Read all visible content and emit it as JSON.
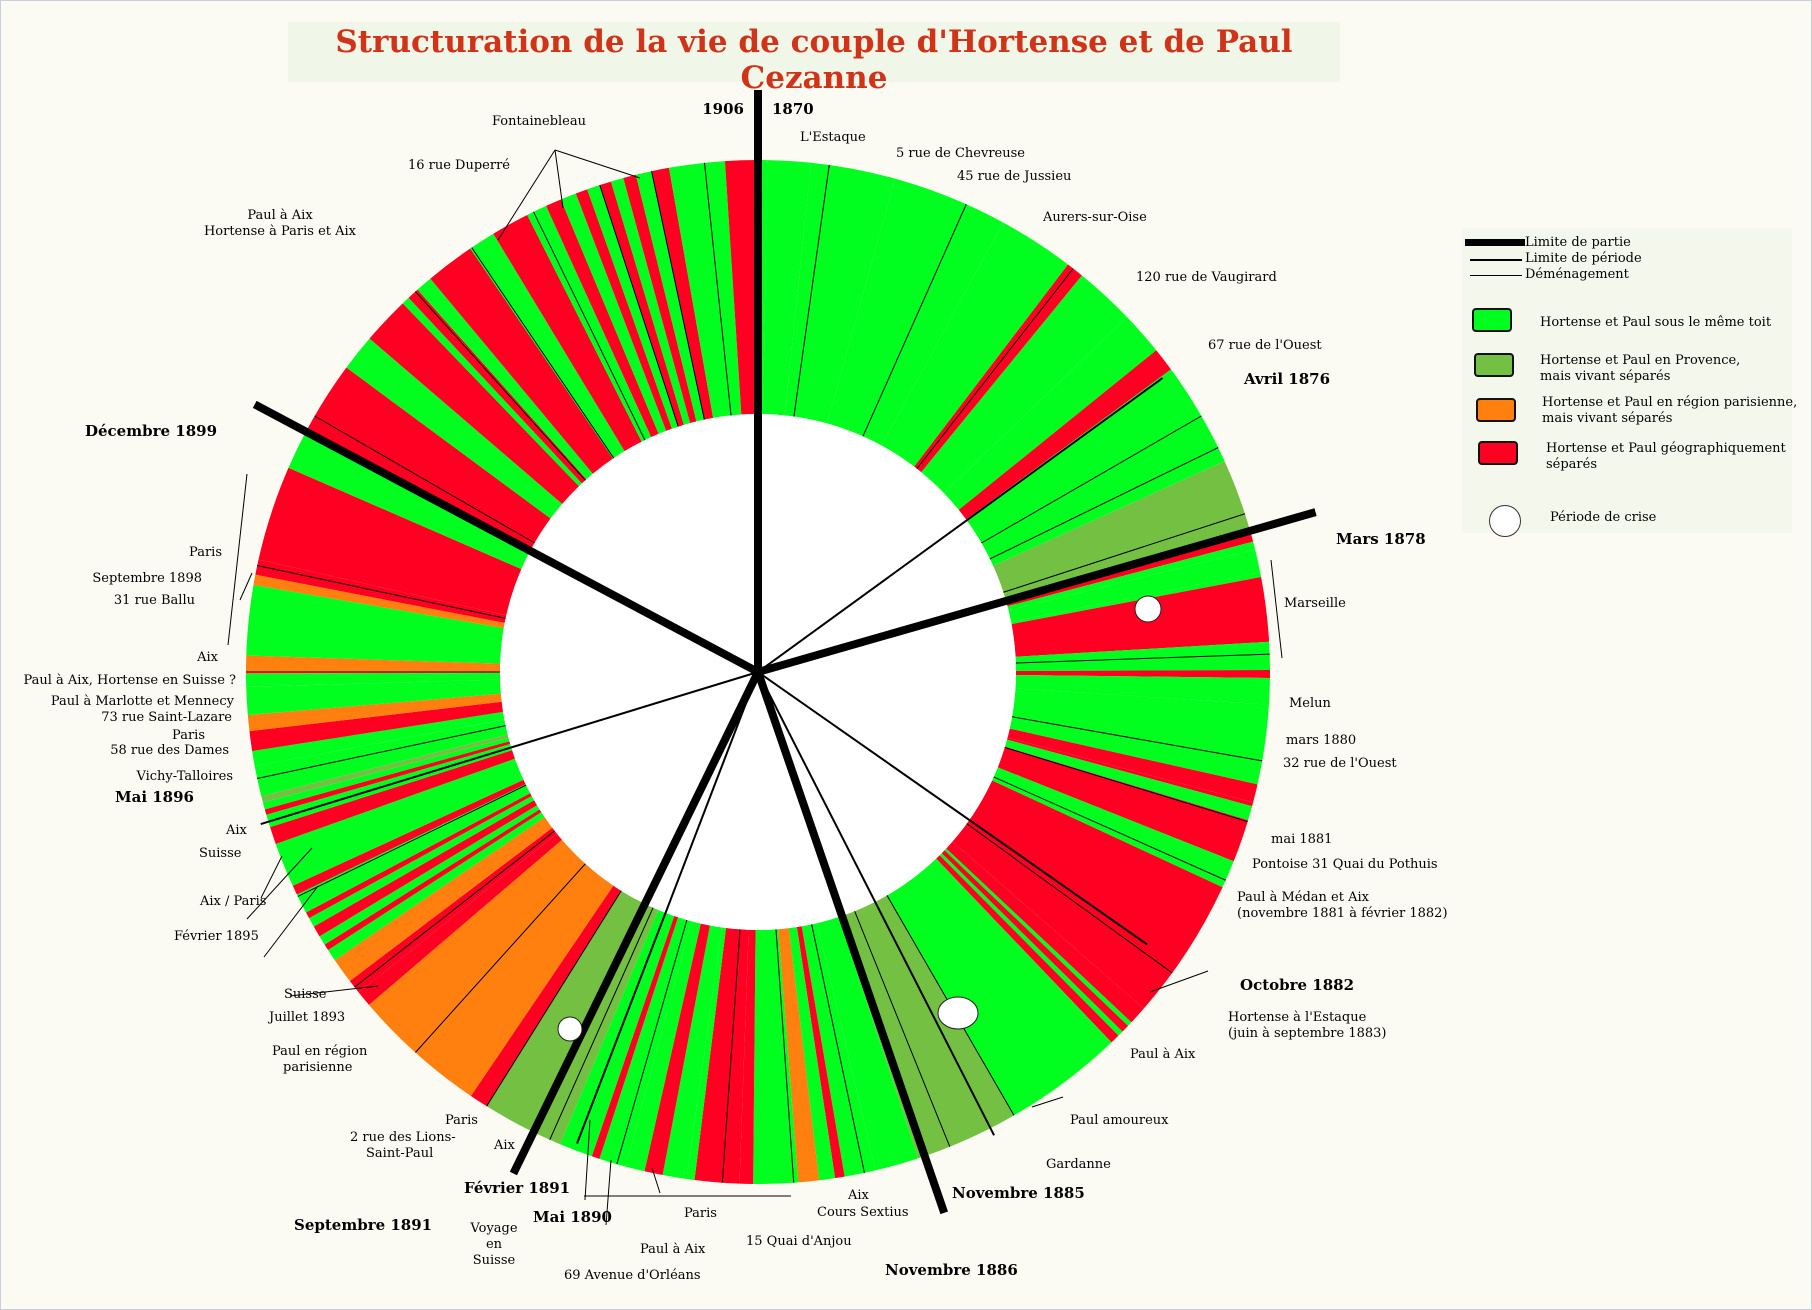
{
  "title": "Structuration de la vie de couple d'Hortense et de Paul Cezanne",
  "colors": {
    "together": "#00ff1e",
    "provence": "#74c043",
    "paris_region": "#ff7f0f",
    "separated": "#ff0022"
  },
  "legend": {
    "part_limit": "Limite de partie",
    "period_limit": "Limite de période",
    "move": "Déménagement",
    "together": "Hortense et Paul sous le même toit",
    "provence_1": "Hortense et Paul en Provence,",
    "provence_2": "mais vivant séparés",
    "paris_1": "Hortense et Paul en région parisienne,",
    "paris_2": "mais vivant séparés",
    "separated_1": "Hortense et Paul géographiquement",
    "separated_2": "séparés",
    "crisis": "Période de crise"
  },
  "boundary_labels": {
    "start": "1870",
    "end": "1906",
    "avril_1876": "Avril 1876",
    "mars_1878": "Mars 1878",
    "octobre_1882": "Octobre 1882",
    "novembre_1885": "Novembre 1885",
    "novembre_1886": "Novembre 1886",
    "mai_1890": "Mai 1890",
    "fevrier_1891": "Février 1891",
    "septembre_1891": "Septembre 1891",
    "mai_1896": "Mai 1896",
    "decembre_1899": "Décembre 1899"
  },
  "places": [
    "L'Estaque",
    "5 rue de Chevreuse",
    "45 rue de Jussieu",
    "Aurers-sur-Oise",
    "120 rue de Vaugirard",
    "67 rue de l'Ouest",
    "Marseille",
    "Melun",
    "mars 1880",
    "32 rue de l'Ouest",
    "mai 1881",
    "Pontoise  31 Quai du Pothuis",
    "Paul à Médan et Aix",
    "(novembre 1881 à février 1882)",
    "Hortense à l'Estaque",
    "(juin à septembre 1883)",
    "Paul à Aix",
    "Paul amoureux",
    "Gardanne",
    "Aix",
    "Cours Sextius",
    "15 Quai d'Anjou",
    "Paris",
    "Paul à Aix",
    "69 Avenue d'Orléans",
    "Voyage",
    "en",
    "Suisse",
    "Aix",
    "2 rue des Lions-",
    "Saint-Paul",
    "Paris",
    "Paul en région",
    "parisienne",
    "Juillet 1893",
    "Suisse",
    "Février 1895",
    "Aix / Paris",
    "Suisse",
    "Aix",
    "Vichy-Talloires",
    "58 rue des Dames",
    "Paris",
    "73 rue Saint-Lazare",
    "Paul à Marlotte et Mennecy",
    "Paul à Aix, Hortense en Suisse ?",
    "Aix",
    "31 rue Ballu",
    "Septembre 1898",
    "Paris",
    "Paul à Aix",
    "Hortense à Paris et Aix",
    "16 rue Duperré",
    "Fontainebleau"
  ],
  "segments": [
    [
      "separated",
      0.5
    ],
    [
      "together",
      0.7
    ],
    [
      "together",
      5.4
    ],
    [
      "together",
      10.6
    ],
    [
      "together",
      14.5
    ],
    [
      "together",
      9.6
    ],
    [
      "separated",
      2.2
    ],
    [
      "together",
      7.6
    ],
    [
      "together",
      5.5
    ],
    [
      "separated",
      3.0
    ],
    [
      "together",
      13.2
    ],
    [
      "provence",
      9.6
    ],
    [
      "separated",
      1.0
    ],
    [
      "together",
      1.0
    ],
    [
      "together",
      2.9
    ],
    [
      "together",
      0.6
    ],
    [
      "separated",
      8.1
    ],
    [
      "together",
      3.5
    ],
    [
      "separated",
      1.0
    ],
    [
      "together",
      3.3
    ],
    [
      "together",
      7.0
    ],
    [
      "together",
      3.0
    ],
    [
      "separated",
      2.3
    ],
    [
      "separated",
      0.5
    ],
    [
      "together",
      1.8
    ],
    [
      "separated",
      5.4
    ],
    [
      "together",
      3.5
    ],
    [
      "separated",
      18.0
    ],
    [
      "separated",
      2.3
    ],
    [
      "together",
      0.6
    ],
    [
      "separated",
      1.0
    ],
    [
      "together",
      0.7
    ],
    [
      "separated",
      1.2
    ],
    [
      "together",
      15.2
    ],
    [
      "provence",
      13.0
    ],
    [
      "together",
      5.5
    ],
    [
      "together",
      3.9
    ],
    [
      "separated",
      1.2
    ],
    [
      "together",
      2.0
    ],
    [
      "orange_pad",
      0
    ],
    [
      "paris_region",
      2.6
    ],
    [
      "together",
      5.6
    ],
    [
      "separated",
      1.7
    ],
    [
      "separated",
      5.6
    ],
    [
      "together",
      1.0
    ],
    [
      "together",
      3.0
    ],
    [
      "separated",
      2.3
    ],
    [
      "together",
      2.4
    ],
    [
      "together",
      3.4
    ],
    [
      "separated",
      1.0
    ],
    [
      "together",
      4.2
    ],
    [
      "provence",
      10.3
    ],
    [
      "separated",
      2.3
    ],
    [
      "paris_region",
      17.0
    ],
    [
      "separated",
      2.0
    ],
    [
      "separated",
      1.8
    ],
    [
      "paris_region",
      3.2
    ],
    [
      "together",
      1.5
    ],
    [
      "separated",
      0.8
    ],
    [
      "together",
      1.2
    ],
    [
      "separated",
      1.4
    ],
    [
      "together",
      1.2
    ],
    [
      "separated",
      0.8
    ],
    [
      "together",
      2.5
    ],
    [
      "separated",
      1.2
    ],
    [
      "together",
      5.6
    ],
    [
      "separated",
      2.2
    ],
    [
      "together",
      1.6
    ],
    [
      "separated",
      0.7
    ],
    [
      "together",
      0.9
    ],
    [
      "provence",
      0.8
    ],
    [
      "together",
      2.2
    ],
    [
      "together",
      1.6
    ],
    [
      "together",
      1.9
    ],
    [
      "separated",
      2.5
    ],
    [
      "paris_region",
      2.0
    ],
    [
      "together",
      3.5
    ],
    [
      "together",
      1.6
    ],
    [
      "paris_region",
      2.3
    ],
    [
      "together",
      8.8
    ],
    [
      "paris_region",
      1.3
    ],
    [
      "separated",
      1.9
    ],
    [
      "separated",
      12.0
    ],
    [
      "together",
      4.8
    ],
    [
      "separated",
      9.6
    ],
    [
      "together",
      4.6
    ],
    [
      "separated",
      6.0
    ],
    [
      "together",
      1.0
    ],
    [
      "separated",
      1.5
    ],
    [
      "together",
      2.1
    ],
    [
      "separated",
      6.2
    ],
    [
      "together",
      3.4
    ],
    [
      "separated",
      4.8
    ],
    [
      "together",
      2.6
    ],
    [
      "separated",
      2.0
    ],
    [
      "together",
      2.0
    ],
    [
      "separated",
      1.5
    ],
    [
      "together",
      1.7
    ],
    [
      "separated",
      1.4
    ],
    [
      "together",
      1.6
    ],
    [
      "separated",
      1.6
    ],
    [
      "together",
      2.0
    ],
    [
      "separated",
      2.2
    ],
    [
      "together",
      7.0
    ],
    [
      "separated",
      4.1
    ]
  ]
}
